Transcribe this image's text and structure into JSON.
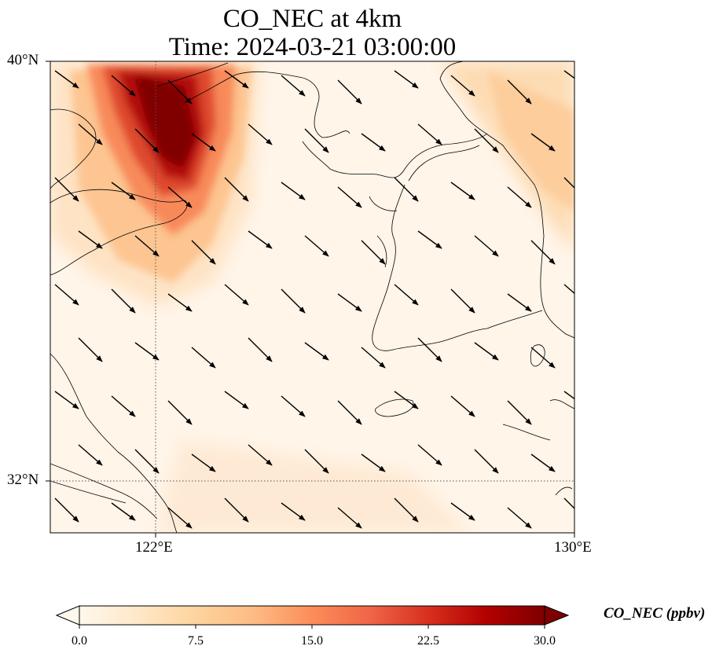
{
  "title": {
    "line1": "CO_NEC at 4km",
    "line2": "Time: 2024-03-21 03:00:00"
  },
  "axes": {
    "lat_ticks": [
      "40°N",
      "32°N"
    ],
    "lon_ticks": [
      "122°E",
      "130°E"
    ],
    "lat_range": [
      31,
      40
    ],
    "lon_range": [
      120,
      130
    ],
    "gridlines": "dotted"
  },
  "colorbar": {
    "label": "CO_NEC (ppbv)",
    "ticks": [
      "0.0",
      "7.5",
      "15.0",
      "22.5",
      "30.0"
    ],
    "range": [
      0,
      30
    ],
    "extend": "both",
    "colormap": "OrRd",
    "colors": [
      "#fff7ec",
      "#fee8c8",
      "#fdd49e",
      "#fdbb84",
      "#fc8d59",
      "#ef6548",
      "#d7301f",
      "#b30000",
      "#7f0000"
    ]
  },
  "map": {
    "field": "CO_NEC",
    "hotspot": "high concentration plume over northwest corner near 121-122°E, 38-40°N",
    "secondary": "moderate values along northeast corner",
    "wind_vectors": "northwesterly flow across domain"
  }
}
